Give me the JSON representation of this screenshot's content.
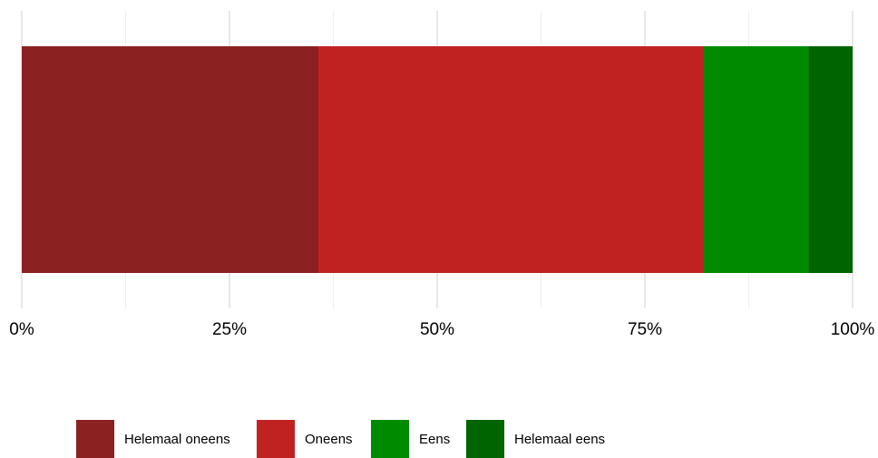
{
  "chart_data": {
    "type": "bar",
    "orientation": "horizontal",
    "stacked": true,
    "categories": [
      ""
    ],
    "series": [
      {
        "name": "Helemaal oneens",
        "values": [
          35.7
        ],
        "color": "#8B2121"
      },
      {
        "name": "Oneens",
        "values": [
          46.4
        ],
        "color": "#C02222"
      },
      {
        "name": "Eens",
        "values": [
          12.6
        ],
        "color": "#008A00"
      },
      {
        "name": "Helemaal eens",
        "values": [
          5.3
        ],
        "color": "#006400"
      }
    ],
    "xlim": [
      0,
      100
    ],
    "ticks": [
      0,
      25,
      50,
      75,
      100
    ],
    "tick_labels": [
      "0%",
      "25%",
      "50%",
      "75%",
      "100%"
    ],
    "minor_ticks": [
      12.5,
      37.5,
      62.5,
      87.5
    ],
    "grid": true,
    "legend_position": "bottom"
  }
}
